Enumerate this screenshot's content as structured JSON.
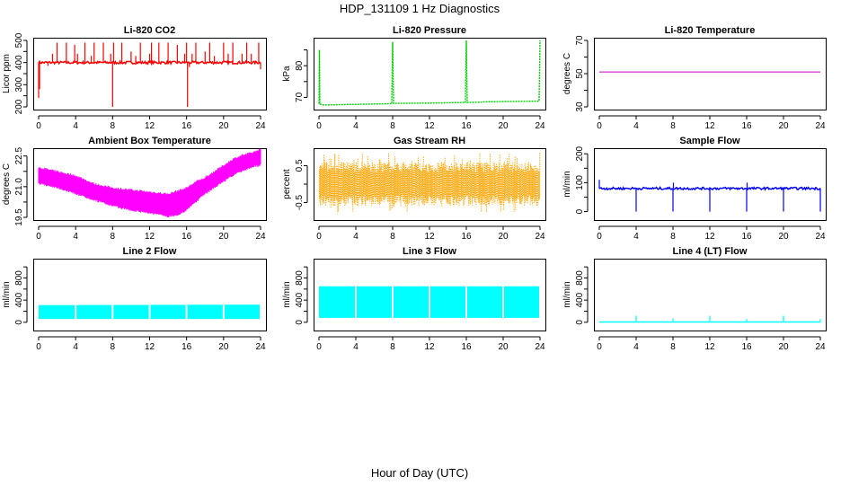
{
  "figure": {
    "title": "HDP_131109  1 Hz Diagnostics",
    "xlabel": "Hour of Day (UTC)"
  },
  "chart_data": [
    {
      "type": "line",
      "title": "Li-820 CO2",
      "ylabel": "Licor ppm",
      "color": "#ff0000",
      "xlim": [
        0,
        24
      ],
      "ylim": [
        200,
        500
      ],
      "yticks": [
        200,
        250,
        300,
        350,
        400,
        450,
        500
      ],
      "ytick_labels": [
        "200",
        "",
        "300",
        "",
        "400",
        "",
        "500"
      ],
      "xticks": [
        0,
        4,
        8,
        12,
        16,
        20,
        24
      ],
      "baseline": 400,
      "noise": 6,
      "spikes": [
        [
          0,
          240
        ],
        [
          0.1,
          280
        ],
        [
          1,
          385
        ],
        [
          1.5,
          440
        ],
        [
          2,
          490
        ],
        [
          3,
          490
        ],
        [
          3.9,
          480
        ],
        [
          4.2,
          440
        ],
        [
          5,
          490
        ],
        [
          5.7,
          430
        ],
        [
          6,
          490
        ],
        [
          7,
          490
        ],
        [
          7.8,
          440
        ],
        [
          8,
          200
        ],
        [
          8.1,
          490
        ],
        [
          9,
          490
        ],
        [
          10,
          450
        ],
        [
          10.5,
          430
        ],
        [
          11,
          490
        ],
        [
          12,
          440
        ],
        [
          12.2,
          490
        ],
        [
          13,
          490
        ],
        [
          14,
          490
        ],
        [
          15,
          480
        ],
        [
          15.8,
          440
        ],
        [
          16,
          490
        ],
        [
          16.1,
          200
        ],
        [
          16.3,
          380
        ],
        [
          16.6,
          440
        ],
        [
          17,
          490
        ],
        [
          18,
          450
        ],
        [
          18.5,
          490
        ],
        [
          19,
          430
        ],
        [
          20,
          490
        ],
        [
          20.5,
          440
        ],
        [
          21,
          490
        ],
        [
          22,
          440
        ],
        [
          22.5,
          490
        ],
        [
          23,
          440
        ],
        [
          23.8,
          490
        ],
        [
          24,
          370
        ]
      ],
      "style": "band"
    },
    {
      "type": "line",
      "title": "Li-820 Pressure",
      "ylabel": "kPa",
      "color": "#00cc00",
      "xlim": [
        0,
        24
      ],
      "ylim": [
        67,
        88
      ],
      "yticks": [
        70,
        75,
        80,
        85
      ],
      "ytick_labels": [
        "70",
        "",
        "80",
        ""
      ],
      "xticks": [
        0,
        4,
        8,
        12,
        16,
        20,
        24
      ],
      "x": [
        0,
        0.05,
        0.1,
        0.5,
        4,
        7.9,
        8,
        8.1,
        12,
        15.9,
        16,
        16.1,
        17.8,
        18,
        20,
        23.9,
        24
      ],
      "y": [
        68,
        85,
        67.9,
        67.6,
        67.8,
        68.0,
        87.5,
        68.1,
        68.2,
        68.4,
        88,
        68.4,
        68.5,
        68.6,
        68.7,
        68.8,
        88
      ],
      "style": "line"
    },
    {
      "type": "line",
      "title": "Li-820 Temperature",
      "ylabel": "degrees C",
      "color": "#cc00cc",
      "xlim": [
        0,
        24
      ],
      "ylim": [
        30,
        70
      ],
      "yticks": [
        30,
        40,
        50,
        60,
        70
      ],
      "ytick_labels": [
        "30",
        "",
        "50",
        "",
        "70"
      ],
      "xticks": [
        0,
        4,
        8,
        12,
        16,
        20,
        24
      ],
      "x": [
        0,
        24
      ],
      "y": [
        51,
        51
      ],
      "style": "line"
    },
    {
      "type": "area",
      "title": "Ambient Box Temperature",
      "ylabel": "degrees C",
      "color": "#ff00ff",
      "xlim": [
        0,
        24
      ],
      "ylim": [
        19.5,
        22.75
      ],
      "yticks": [
        19.5,
        20.25,
        21.0,
        21.75,
        22.5
      ],
      "ytick_labels": [
        "19.5",
        "",
        "21.0",
        "",
        "22.5"
      ],
      "xticks": [
        0,
        4,
        8,
        12,
        16,
        20,
        24
      ],
      "x": [
        0,
        2,
        4,
        6,
        8,
        10,
        12,
        14,
        15,
        16,
        17,
        18,
        19,
        20,
        21,
        22,
        23,
        24
      ],
      "upper": [
        21.9,
        21.7,
        21.5,
        21.1,
        20.9,
        20.8,
        20.7,
        20.6,
        20.75,
        20.9,
        21.2,
        21.4,
        21.7,
        22.0,
        22.3,
        22.5,
        22.6,
        22.8
      ],
      "lower": [
        21.2,
        21.0,
        20.7,
        20.4,
        20.1,
        19.9,
        19.75,
        19.6,
        19.65,
        19.9,
        20.3,
        20.7,
        21.0,
        21.3,
        21.6,
        21.8,
        22.0,
        22.1
      ],
      "style": "band"
    },
    {
      "type": "area",
      "title": "Gas Stream RH",
      "ylabel": "percent",
      "color": "#ffa500",
      "xlim": [
        0,
        24
      ],
      "ylim": [
        -0.9,
        0.9
      ],
      "yticks": [
        -0.5,
        0,
        0.5
      ],
      "ytick_labels": [
        "-0.5",
        "",
        "0.5"
      ],
      "xticks": [
        0,
        4,
        8,
        12,
        16,
        20,
        24
      ],
      "x": [
        0,
        24
      ],
      "upper": [
        0.6,
        0.6
      ],
      "lower": [
        -0.6,
        -0.6
      ],
      "style": "noise"
    },
    {
      "type": "line",
      "title": "Sample Flow",
      "ylabel": "ml/min",
      "color": "#0000ff",
      "xlim": [
        0,
        24
      ],
      "ylim": [
        -20,
        210
      ],
      "yticks": [
        0,
        50,
        100,
        150,
        200
      ],
      "ytick_labels": [
        "0",
        "",
        "100",
        "",
        "200"
      ],
      "xticks": [
        0,
        4,
        8,
        12,
        16,
        20,
        24
      ],
      "baseline": 80,
      "noise": 4,
      "spikes": [
        [
          0,
          110
        ],
        [
          4,
          0
        ],
        [
          8,
          0
        ],
        [
          8.05,
          100
        ],
        [
          12,
          0
        ],
        [
          16,
          0
        ],
        [
          16.05,
          100
        ],
        [
          20,
          0
        ],
        [
          24,
          0
        ]
      ],
      "style": "band"
    },
    {
      "type": "area",
      "title": "Line 2 Flow",
      "ylabel": "ml/min",
      "color": "#00ffff",
      "xlim": [
        0,
        24
      ],
      "ylim": [
        -100,
        1100
      ],
      "yticks": [
        0,
        200,
        400,
        600,
        800,
        1000
      ],
      "ytick_labels": [
        "0",
        "",
        "400",
        "",
        "800",
        ""
      ],
      "xticks": [
        0,
        4,
        8,
        12,
        16,
        20,
        24
      ],
      "x": [
        0,
        24
      ],
      "upper": [
        310,
        320
      ],
      "lower": [
        60,
        60
      ],
      "gaps": [
        4,
        8,
        12,
        16,
        20
      ],
      "style": "blocks"
    },
    {
      "type": "area",
      "title": "Line 3 Flow",
      "ylabel": "ml/min",
      "color": "#00ffff",
      "xlim": [
        0,
        24
      ],
      "ylim": [
        -100,
        1100
      ],
      "yticks": [
        0,
        200,
        400,
        600,
        800,
        1000
      ],
      "ytick_labels": [
        "0",
        "",
        "400",
        "",
        "800",
        ""
      ],
      "xticks": [
        0,
        4,
        8,
        12,
        16,
        20,
        24
      ],
      "x": [
        0,
        24
      ],
      "upper": [
        650,
        650
      ],
      "lower": [
        80,
        80
      ],
      "gaps": [
        4,
        8,
        12,
        16,
        20
      ],
      "style": "blocks"
    },
    {
      "type": "line",
      "title": "Line 4 (LT) Flow",
      "ylabel": "ml/min",
      "color": "#00ffff",
      "xlim": [
        0,
        24
      ],
      "ylim": [
        -100,
        1100
      ],
      "yticks": [
        0,
        200,
        400,
        600,
        800,
        1000
      ],
      "ytick_labels": [
        "0",
        "",
        "400",
        "",
        "800",
        ""
      ],
      "xticks": [
        0,
        4,
        8,
        12,
        16,
        20,
        24
      ],
      "baseline": 5,
      "noise": 0,
      "spikes": [
        [
          4,
          120
        ],
        [
          8,
          70
        ],
        [
          12,
          120
        ],
        [
          16,
          60
        ],
        [
          20,
          120
        ],
        [
          24,
          60
        ]
      ],
      "style": "band"
    }
  ]
}
